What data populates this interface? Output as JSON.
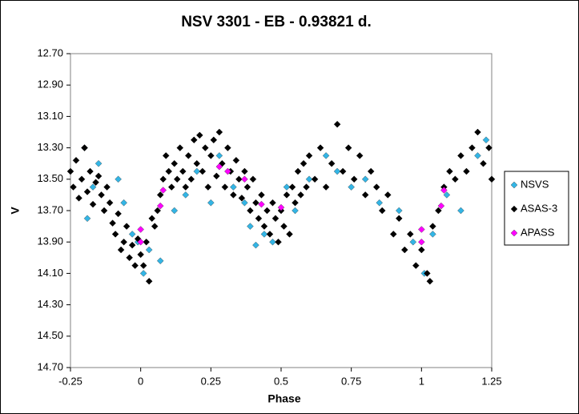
{
  "chart_data": {
    "type": "scatter",
    "title": "NSV 3301 - EB - 0.93821 d.",
    "x_label": "Phase",
    "y_label": "V",
    "xlim": [
      -0.25,
      1.25
    ],
    "xticks": [
      -0.25,
      0,
      0.25,
      0.5,
      0.75,
      1,
      1.25
    ],
    "ylim": [
      12.7,
      14.7
    ],
    "y_reversed": true,
    "yticks": [
      {
        "value": 12.7,
        "label": "12.70"
      },
      {
        "value": 12.9,
        "label": "12.90"
      },
      {
        "value": 13.1,
        "label": "13.10"
      },
      {
        "value": 13.3,
        "label": "13.30"
      },
      {
        "value": 13.5,
        "label": "13.50"
      },
      {
        "value": 13.7,
        "label": "13.70"
      },
      {
        "value": 13.9,
        "label": "13.90"
      },
      {
        "value": 14.1,
        "label": "14.10"
      },
      {
        "value": 14.3,
        "label": "14.30"
      },
      {
        "value": 14.5,
        "label": "14.50"
      },
      {
        "value": 14.7,
        "label": "14.70"
      }
    ],
    "grid": false,
    "legend": "right",
    "series": [
      {
        "name": "NSVS",
        "color": "#33b5e5",
        "x": [
          -0.2,
          -0.19,
          -0.17,
          -0.15,
          -0.08,
          -0.06,
          -0.03,
          -0.01,
          0.01,
          0.03,
          0.07,
          0.12,
          0.16,
          0.2,
          0.25,
          0.28,
          0.33,
          0.37,
          0.39,
          0.41,
          0.44,
          0.47,
          0.52,
          0.55,
          0.6,
          0.66,
          0.7,
          0.75,
          0.8,
          0.85,
          0.92,
          0.97,
          1.01,
          1.04,
          1.09,
          1.14,
          1.2,
          1.23
        ],
        "values": [
          13.3,
          13.75,
          13.55,
          13.4,
          13.5,
          13.65,
          13.85,
          13.9,
          14.1,
          13.95,
          14.02,
          13.7,
          13.6,
          13.45,
          13.65,
          13.35,
          13.55,
          13.65,
          13.8,
          13.92,
          13.85,
          13.9,
          13.55,
          13.7,
          13.5,
          13.35,
          13.45,
          13.55,
          13.5,
          13.65,
          13.7,
          13.9,
          14.1,
          13.85,
          13.6,
          13.7,
          13.35,
          13.25
        ]
      },
      {
        "name": "ASAS-3",
        "color": "#000000",
        "x": [
          -0.25,
          -0.24,
          -0.23,
          -0.22,
          -0.21,
          -0.2,
          -0.19,
          -0.18,
          -0.17,
          -0.16,
          -0.15,
          -0.14,
          -0.13,
          -0.12,
          -0.11,
          -0.1,
          -0.09,
          -0.08,
          -0.07,
          -0.06,
          -0.05,
          -0.04,
          -0.03,
          -0.02,
          -0.01,
          0,
          0.01,
          0.02,
          0.03,
          0.04,
          0.05,
          0.06,
          0.07,
          0.08,
          0.09,
          0.1,
          0.11,
          0.12,
          0.13,
          0.14,
          0.15,
          0.16,
          0.17,
          0.18,
          0.19,
          0.2,
          0.21,
          0.22,
          0.23,
          0.24,
          0.25,
          0.26,
          0.27,
          0.28,
          0.29,
          0.3,
          0.31,
          0.32,
          0.33,
          0.34,
          0.35,
          0.36,
          0.37,
          0.38,
          0.39,
          0.4,
          0.41,
          0.42,
          0.43,
          0.44,
          0.45,
          0.46,
          0.47,
          0.48,
          0.49,
          0.5,
          0.51,
          0.52,
          0.53,
          0.54,
          0.55,
          0.56,
          0.57,
          0.58,
          0.59,
          0.6,
          0.62,
          0.64,
          0.66,
          0.68,
          0.7,
          0.72,
          0.74,
          0.76,
          0.78,
          0.8,
          0.82,
          0.84,
          0.86,
          0.88,
          0.9,
          0.92,
          0.94,
          0.96,
          0.98,
          1,
          1.02,
          1.03,
          1.04,
          1.06,
          1.08,
          1.1,
          1.12,
          1.14,
          1.16,
          1.18,
          1.2,
          1.22,
          1.24,
          1.25
        ],
        "values": [
          13.45,
          13.55,
          13.38,
          13.62,
          13.5,
          13.3,
          13.58,
          13.45,
          13.66,
          13.52,
          13.48,
          13.6,
          13.7,
          13.55,
          13.65,
          13.78,
          13.85,
          13.72,
          13.95,
          13.9,
          13.8,
          14.0,
          13.92,
          14.05,
          13.88,
          13.98,
          14.05,
          13.9,
          14.15,
          13.75,
          13.8,
          13.7,
          13.6,
          13.5,
          13.35,
          13.45,
          13.55,
          13.4,
          13.5,
          13.3,
          13.45,
          13.55,
          13.35,
          13.5,
          13.25,
          13.4,
          13.22,
          13.45,
          13.3,
          13.55,
          13.35,
          13.25,
          13.48,
          13.2,
          13.4,
          13.55,
          13.3,
          13.45,
          13.6,
          13.38,
          13.5,
          13.62,
          13.45,
          13.55,
          13.7,
          13.5,
          13.65,
          13.75,
          13.6,
          13.8,
          13.7,
          13.85,
          13.65,
          13.75,
          13.9,
          13.7,
          13.8,
          13.6,
          13.85,
          13.55,
          13.65,
          13.45,
          13.6,
          13.4,
          13.55,
          13.35,
          13.5,
          13.3,
          13.55,
          13.4,
          13.15,
          13.45,
          13.3,
          13.5,
          13.35,
          13.6,
          13.45,
          13.55,
          13.7,
          13.6,
          13.85,
          13.75,
          13.95,
          13.85,
          14.05,
          13.95,
          14.1,
          14.15,
          13.8,
          13.7,
          13.55,
          13.45,
          13.5,
          13.35,
          13.45,
          13.3,
          13.2,
          13.4,
          13.3,
          13.5
        ]
      },
      {
        "name": "APASS",
        "color": "#ff00ff",
        "x": [
          0,
          0,
          0.07,
          0.08,
          0.28,
          0.31,
          0.37,
          0.43,
          0.5,
          1,
          1,
          1.07,
          1.08
        ],
        "values": [
          13.82,
          13.9,
          13.67,
          13.57,
          13.42,
          13.45,
          13.5,
          13.66,
          13.68,
          13.82,
          13.9,
          13.67,
          13.57
        ]
      }
    ]
  }
}
